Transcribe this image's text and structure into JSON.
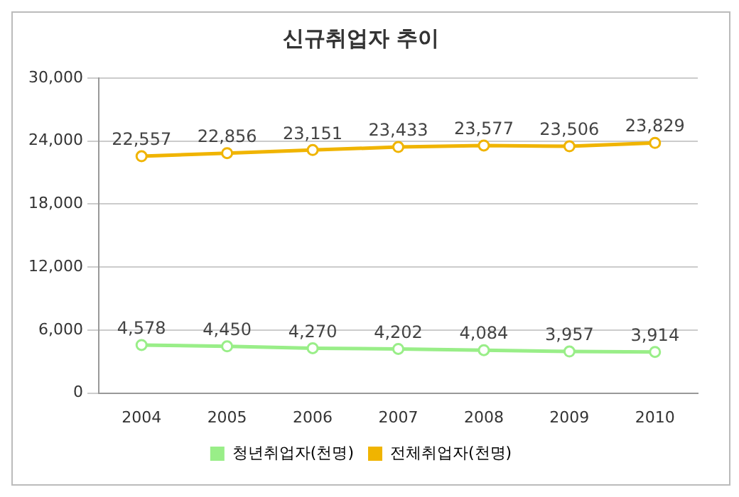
{
  "chart_data": {
    "type": "line",
    "title": "신규취업자 추이",
    "categories": [
      "2004",
      "2005",
      "2006",
      "2007",
      "2008",
      "2009",
      "2010"
    ],
    "series": [
      {
        "name": "청년취업자(천명)",
        "color": "#99ee88",
        "values": [
          4578,
          4450,
          4270,
          4202,
          4084,
          3957,
          3914
        ],
        "value_labels": [
          "4,578",
          "4,450",
          "4,270",
          "4,202",
          "4,084",
          "3,957",
          "3,914"
        ]
      },
      {
        "name": "전체취업자(천명)",
        "color": "#f0b400",
        "values": [
          22557,
          22856,
          23151,
          23433,
          23577,
          23506,
          23829
        ],
        "value_labels": [
          "22,557",
          "22,856",
          "23,151",
          "23,433",
          "23,577",
          "23,506",
          "23,829"
        ]
      }
    ],
    "ylim": [
      0,
      30000
    ],
    "yticks": [
      {
        "value": 0,
        "label": "0"
      },
      {
        "value": 6000,
        "label": "6,000"
      },
      {
        "value": 12000,
        "label": "12,000"
      },
      {
        "value": 18000,
        "label": "18,000"
      },
      {
        "value": 24000,
        "label": "24,000"
      },
      {
        "value": 30000,
        "label": "30,000"
      }
    ],
    "grid": "y",
    "legend": "bottom",
    "marker": "circle",
    "line_style": "solid"
  }
}
